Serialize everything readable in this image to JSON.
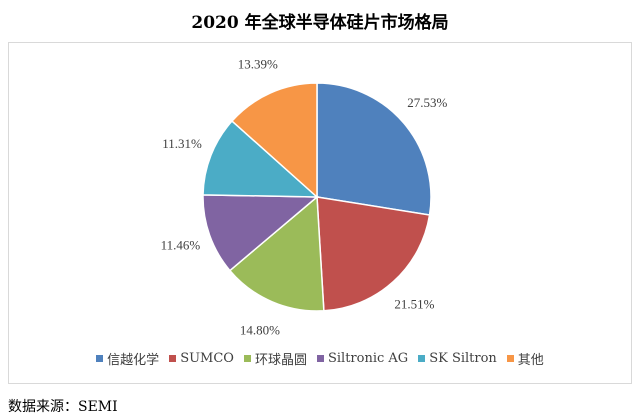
{
  "chart_data": {
    "type": "pie",
    "title": "2020 年全球半导体硅片市场格局",
    "slices": [
      {
        "name": "信越化学",
        "value": 27.53,
        "label": "27.53%",
        "color": "#4f81bd"
      },
      {
        "name": "SUMCO",
        "value": 21.51,
        "label": "21.51%",
        "color": "#c0504d"
      },
      {
        "name": "环球晶圆",
        "value": 14.8,
        "label": "14.80%",
        "color": "#9bbb59"
      },
      {
        "name": "Siltronic AG",
        "value": 11.46,
        "label": "11.46%",
        "color": "#8064a2"
      },
      {
        "name": "SK Siltron",
        "value": 11.31,
        "label": "11.31%",
        "color": "#4bacc6"
      },
      {
        "name": "其他",
        "value": 13.39,
        "label": "13.39%",
        "color": "#f79646"
      }
    ],
    "legend_position": "bottom"
  },
  "source": "数据来源：SEMI"
}
